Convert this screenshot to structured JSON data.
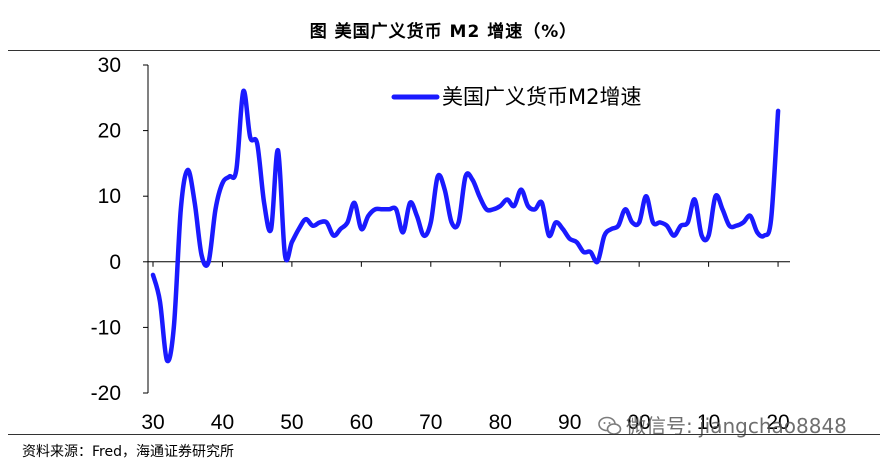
{
  "header": {
    "title": "图  美国广义货币 M2 增速（%）"
  },
  "footer": {
    "source": "资料来源：Fred，海通证券研究所"
  },
  "watermark": {
    "text": "微信号: jiangchao8848",
    "icon": "wechat-icon"
  },
  "colors": {
    "series": "#1a1aff",
    "axis": "#000000"
  },
  "chart_data": {
    "type": "line",
    "title": "",
    "xlabel": "",
    "ylabel": "",
    "ylim": [
      -20,
      30
    ],
    "xlim": [
      30,
      21
    ],
    "y_ticks": [
      -20,
      -10,
      0,
      10,
      20,
      30
    ],
    "x_tick_labels": [
      "30",
      "40",
      "50",
      "60",
      "70",
      "80",
      "90",
      "00",
      "10",
      "20"
    ],
    "grid": false,
    "legend_position": "top-right",
    "series": [
      {
        "name": "美国广义货币M2增速",
        "color": "#1a1aff",
        "x": [
          30,
          31,
          32,
          33,
          34,
          35,
          36,
          37,
          38,
          39,
          40,
          41,
          42,
          43,
          44,
          45,
          46,
          47,
          48,
          49,
          50,
          51,
          52,
          53,
          54,
          55,
          56,
          57,
          58,
          59,
          60,
          61,
          62,
          63,
          64,
          65,
          66,
          67,
          68,
          69,
          70,
          71,
          72,
          73,
          74,
          75,
          76,
          77,
          78,
          79,
          80,
          81,
          82,
          83,
          84,
          85,
          86,
          87,
          88,
          89,
          90,
          91,
          92,
          93,
          94,
          95,
          96,
          97,
          98,
          99,
          100,
          101,
          102,
          103,
          104,
          105,
          106,
          107,
          108,
          109,
          110,
          111,
          112,
          113,
          114,
          115,
          116,
          117,
          118,
          119,
          120
        ],
        "y": [
          -2,
          -6,
          -15,
          -10,
          8,
          14,
          9,
          1,
          0,
          8,
          12,
          13,
          14,
          26,
          19,
          18,
          9,
          5,
          17,
          1,
          3,
          5,
          6.5,
          5.5,
          6,
          6,
          4,
          5,
          6,
          9,
          5,
          7,
          8,
          8,
          8,
          8,
          4.5,
          9,
          7,
          4,
          6,
          13,
          11,
          6,
          6,
          13,
          12.5,
          10,
          8,
          8,
          8.5,
          9.5,
          8.5,
          11,
          8.5,
          8,
          9,
          4,
          6,
          5,
          3.5,
          3,
          1.5,
          1.5,
          0,
          4,
          5,
          5.5,
          8,
          6,
          6,
          10,
          6,
          6,
          5.5,
          4,
          5.5,
          6,
          9.5,
          4,
          4,
          10,
          8,
          5.5,
          5.5,
          6,
          7,
          4.5,
          4,
          6.5,
          23
        ]
      }
    ]
  }
}
